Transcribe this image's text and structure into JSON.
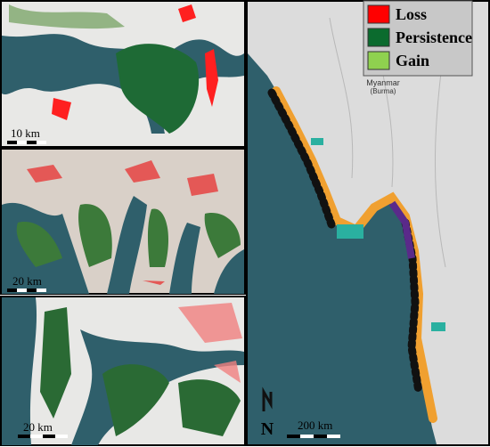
{
  "legend": {
    "items": [
      {
        "label": "Loss",
        "color": "#ff0000"
      },
      {
        "label": "Persistence",
        "color": "#0b6b2e"
      },
      {
        "label": "Gain",
        "color": "#8fd14f"
      }
    ]
  },
  "panels": [
    {
      "scale_label": "10 km"
    },
    {
      "scale_label": "20 km"
    },
    {
      "scale_label": "20 km"
    }
  ],
  "map": {
    "country_label": "Myanmar",
    "country_sublabel": "(Burma)",
    "north_label": "N",
    "scale_label": "200 km"
  }
}
